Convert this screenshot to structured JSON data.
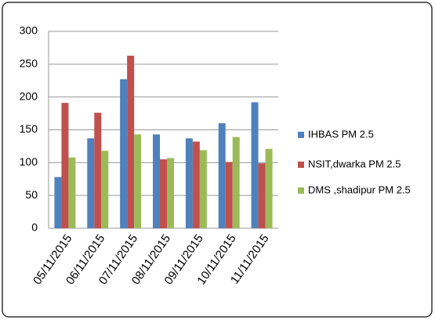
{
  "chart_data": {
    "type": "bar",
    "categories": [
      "05/11/2015",
      "06/11/2015",
      "07/11/2015",
      "08/11/2015",
      "09/11/2015",
      "10/11/2015",
      "11/11/2015"
    ],
    "series": [
      {
        "name": "IHBAS  PM 2.5",
        "color": "#4f81bd",
        "values": [
          78,
          137,
          227,
          143,
          137,
          160,
          192
        ]
      },
      {
        "name": "NSIT,dwarka PM 2.5",
        "color": "#c0504d",
        "values": [
          191,
          176,
          263,
          105,
          132,
          101,
          99
        ]
      },
      {
        "name": "DMS ,shadipur PM 2.5",
        "color": "#9bbb59",
        "values": [
          108,
          118,
          143,
          107,
          119,
          139,
          121
        ]
      }
    ],
    "ylim": [
      0,
      300
    ],
    "yticks": [
      0,
      50,
      100,
      150,
      200,
      250,
      300
    ],
    "grid": true,
    "legend": "right"
  }
}
